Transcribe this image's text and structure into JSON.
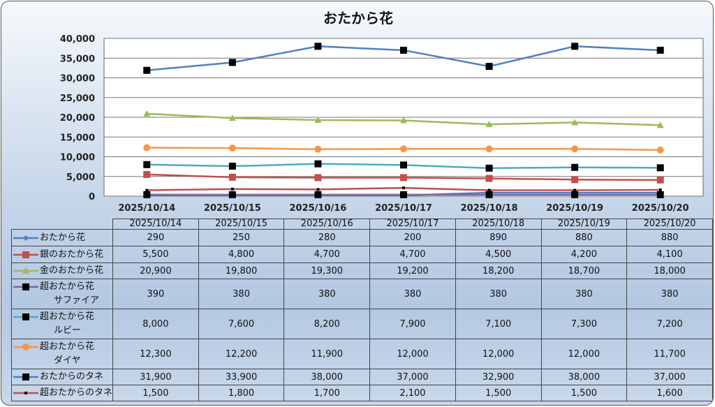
{
  "chart_data": {
    "type": "line",
    "title": "おたから花",
    "categories": [
      "2025/10/14",
      "2025/10/15",
      "2025/10/16",
      "2025/10/17",
      "2025/10/18",
      "2025/10/19",
      "2025/10/20"
    ],
    "ylim": [
      0,
      40000
    ],
    "yticks": [
      "0",
      "5,000",
      "10,000",
      "15,000",
      "20,000",
      "25,000",
      "30,000",
      "35,000",
      "40,000"
    ],
    "grid": true,
    "legend": "data-table",
    "series": [
      {
        "name": "おたから花",
        "name_lines": [
          "おたから花"
        ],
        "color": "#4f81bd",
        "marker": "diamond",
        "values": [
          290,
          250,
          280,
          200,
          890,
          880,
          880
        ],
        "labels": [
          "290",
          "250",
          "280",
          "200",
          "890",
          "880",
          "880"
        ]
      },
      {
        "name": "銀のおたから花",
        "name_lines": [
          "銀のおたから花"
        ],
        "color": "#c0504d",
        "marker": "square-color",
        "values": [
          5500,
          4800,
          4700,
          4700,
          4500,
          4200,
          4100
        ],
        "labels": [
          "5,500",
          "4,800",
          "4,700",
          "4,700",
          "4,500",
          "4,200",
          "4,100"
        ]
      },
      {
        "name": "金のおたから花",
        "name_lines": [
          "金のおたから花"
        ],
        "color": "#9bbb59",
        "marker": "triangle",
        "values": [
          20900,
          19800,
          19300,
          19200,
          18200,
          18700,
          18000
        ],
        "labels": [
          "20,900",
          "19,800",
          "19,300",
          "19,200",
          "18,200",
          "18,700",
          "18,000"
        ]
      },
      {
        "name": "超おたから花サファイア",
        "name_lines": [
          "超おたから花",
          "サファイア"
        ],
        "color": "#8064a2",
        "marker": "square-black",
        "values": [
          390,
          380,
          380,
          380,
          380,
          380,
          380
        ],
        "labels": [
          "390",
          "380",
          "380",
          "380",
          "380",
          "380",
          "380"
        ]
      },
      {
        "name": "超おたから花ルビー",
        "name_lines": [
          "超おたから花",
          "ルビー"
        ],
        "color": "#4bacc6",
        "marker": "square-black",
        "values": [
          8000,
          7600,
          8200,
          7900,
          7100,
          7300,
          7200
        ],
        "labels": [
          "8,000",
          "7,600",
          "8,200",
          "7,900",
          "7,100",
          "7,300",
          "7,200"
        ]
      },
      {
        "name": "超おたから花ダイヤ",
        "name_lines": [
          "超おたから花",
          "ダイヤ"
        ],
        "color": "#f79646",
        "marker": "circle",
        "values": [
          12300,
          12200,
          11900,
          12000,
          12000,
          12000,
          11700
        ],
        "labels": [
          "12,300",
          "12,200",
          "11,900",
          "12,000",
          "12,000",
          "12,000",
          "11,700"
        ]
      },
      {
        "name": "おたからのタネ",
        "name_lines": [
          "おたからのタネ"
        ],
        "color": "#4f81bd",
        "marker": "square-black",
        "values": [
          31900,
          33900,
          38000,
          37000,
          32900,
          38000,
          37000
        ],
        "labels": [
          "31,900",
          "33,900",
          "38,000",
          "37,000",
          "32,900",
          "38,000",
          "37,000"
        ]
      },
      {
        "name": "超おたからのタネ",
        "name_lines": [
          "超おたからのタネ"
        ],
        "color": "#c0504d",
        "marker": "dash-black",
        "values": [
          1500,
          1800,
          1700,
          2100,
          1500,
          1500,
          1600
        ],
        "labels": [
          "1,500",
          "1,800",
          "1,700",
          "2,100",
          "1,500",
          "1,500",
          "1,600"
        ]
      }
    ]
  }
}
